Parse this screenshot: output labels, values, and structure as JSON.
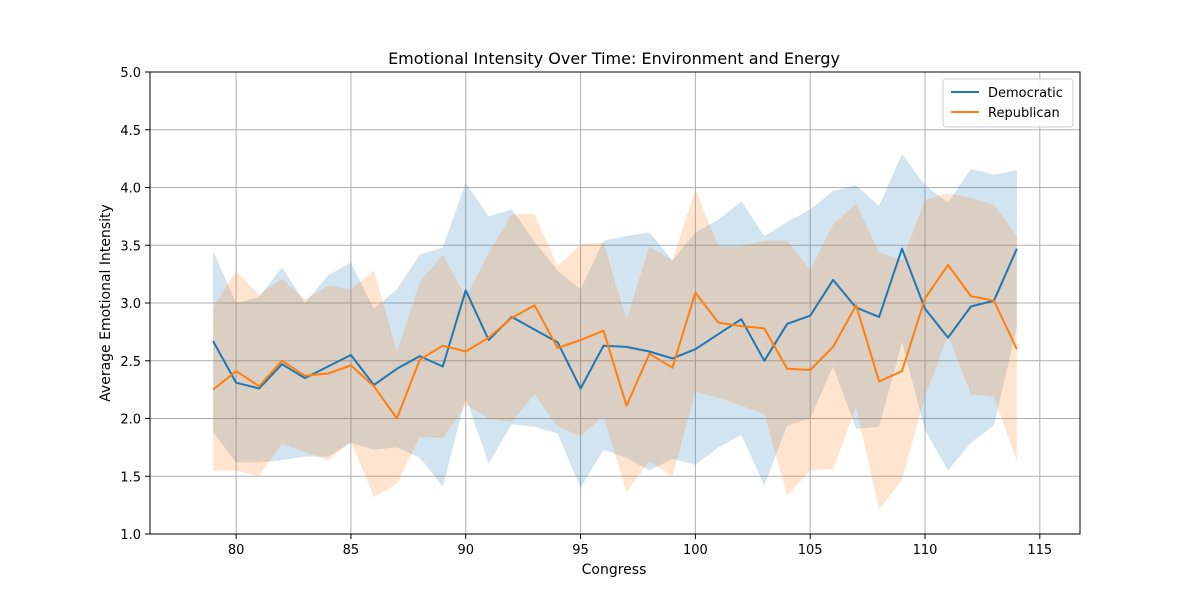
{
  "chart_data": {
    "type": "line",
    "title": "Emotional Intensity Over Time: Environment and Energy",
    "xlabel": "Congress",
    "ylabel": "Average Emotional Intensity",
    "xlim": [
      76.25,
      116.75
    ],
    "ylim": [
      1.0,
      5.0
    ],
    "xticks": [
      80,
      85,
      90,
      95,
      100,
      105,
      110,
      115
    ],
    "yticks": [
      1.0,
      1.5,
      2.0,
      2.5,
      3.0,
      3.5,
      4.0,
      4.5,
      5.0
    ],
    "grid": true,
    "legend_position": "top-right",
    "x": [
      79,
      80,
      81,
      82,
      83,
      84,
      85,
      86,
      87,
      88,
      89,
      90,
      91,
      92,
      93,
      94,
      95,
      96,
      97,
      98,
      99,
      100,
      101,
      102,
      103,
      104,
      105,
      106,
      107,
      108,
      109,
      110,
      111,
      112,
      113,
      114
    ],
    "series": [
      {
        "name": "Democratic",
        "color": "#1f77b4",
        "band_color": "#1f77b4",
        "values": [
          2.67,
          2.31,
          2.26,
          2.47,
          2.35,
          2.45,
          2.55,
          2.29,
          2.43,
          2.54,
          2.45,
          3.11,
          2.68,
          2.88,
          2.77,
          2.66,
          2.26,
          2.63,
          2.62,
          2.58,
          2.52,
          2.6,
          2.73,
          2.86,
          2.5,
          2.82,
          2.89,
          3.2,
          2.96,
          2.88,
          3.47,
          2.95,
          2.7,
          2.97,
          3.02,
          3.47
        ],
        "upper": [
          3.45,
          3.0,
          3.05,
          3.31,
          3.0,
          3.24,
          3.35,
          2.95,
          3.12,
          3.42,
          3.48,
          4.04,
          3.75,
          3.81,
          3.53,
          3.28,
          3.12,
          3.54,
          3.58,
          3.61,
          3.37,
          3.61,
          3.72,
          3.88,
          3.58,
          3.7,
          3.81,
          3.97,
          4.02,
          3.84,
          4.29,
          4.02,
          3.87,
          4.16,
          4.11,
          4.15
        ],
        "lower": [
          1.88,
          1.62,
          1.62,
          1.64,
          1.67,
          1.67,
          1.79,
          1.73,
          1.75,
          1.66,
          1.41,
          2.18,
          1.61,
          1.95,
          1.93,
          1.87,
          1.4,
          1.73,
          1.66,
          1.55,
          1.65,
          1.6,
          1.75,
          1.86,
          1.42,
          1.94,
          2.0,
          2.45,
          1.91,
          1.93,
          2.66,
          1.9,
          1.55,
          1.79,
          1.94,
          2.79
        ]
      },
      {
        "name": "Republican",
        "color": "#ff7f0e",
        "band_color": "#ff7f0e",
        "values": [
          2.25,
          2.41,
          2.28,
          2.5,
          2.37,
          2.39,
          2.46,
          2.28,
          2.0,
          2.51,
          2.63,
          2.58,
          2.7,
          2.87,
          2.98,
          2.61,
          2.68,
          2.76,
          2.11,
          2.56,
          2.44,
          3.09,
          2.83,
          2.8,
          2.78,
          2.43,
          2.42,
          2.62,
          2.98,
          2.32,
          2.41,
          3.04,
          3.33,
          3.06,
          3.02,
          2.6
        ],
        "upper": [
          2.96,
          3.28,
          3.07,
          3.21,
          3.03,
          3.15,
          3.12,
          3.28,
          2.58,
          3.18,
          3.42,
          3.05,
          3.43,
          3.77,
          3.77,
          3.32,
          3.51,
          3.52,
          2.86,
          3.49,
          3.37,
          3.98,
          3.49,
          3.49,
          3.54,
          3.54,
          3.29,
          3.68,
          3.86,
          3.44,
          3.37,
          3.89,
          3.95,
          3.91,
          3.85,
          3.58
        ],
        "lower": [
          1.55,
          1.55,
          1.5,
          1.78,
          1.71,
          1.64,
          1.8,
          1.32,
          1.43,
          1.84,
          1.83,
          2.12,
          2.0,
          1.97,
          2.21,
          1.93,
          1.85,
          2.02,
          1.36,
          1.63,
          1.5,
          2.23,
          2.18,
          2.11,
          2.04,
          1.33,
          1.55,
          1.56,
          2.1,
          1.21,
          1.47,
          2.19,
          2.72,
          2.21,
          2.19,
          1.63
        ]
      }
    ]
  }
}
